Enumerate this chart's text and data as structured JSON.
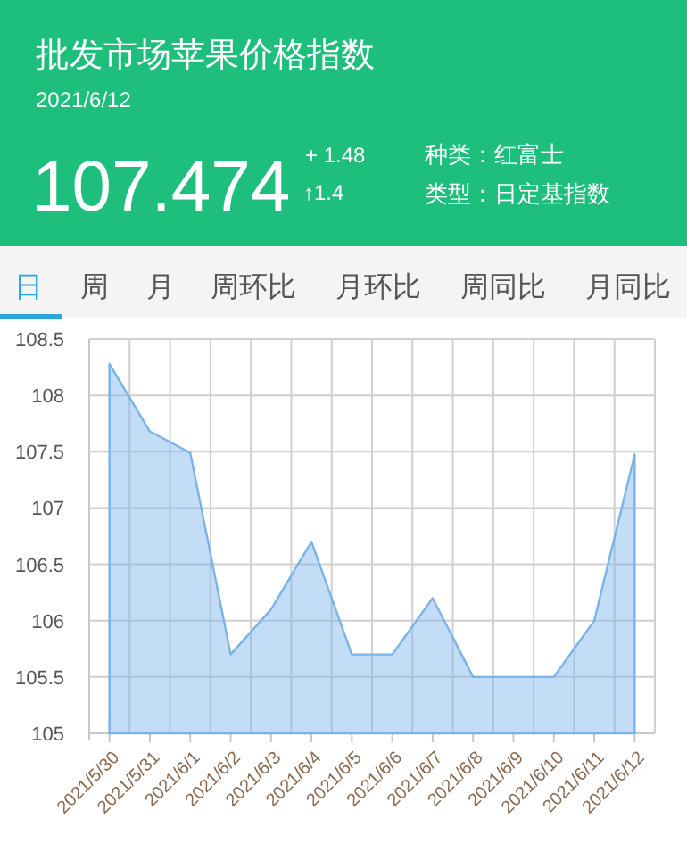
{
  "chart_data": {
    "type": "area",
    "title": "批发市场苹果价格指数",
    "subtitle": "2021/6/12",
    "annotations": [
      "107.474",
      "+ 1.48",
      "↑1.4",
      "种类：红富士",
      "类型：日定基指数",
      "日",
      "周",
      "月",
      "周环比",
      "月环比",
      "周同比",
      "月同比"
    ],
    "categories": [
      "2021/5/30",
      "2021/5/31",
      "2021/6/1",
      "2021/6/2",
      "2021/6/3",
      "2021/6/4",
      "2021/6/5",
      "2021/6/6",
      "2021/6/7",
      "2021/6/8",
      "2021/6/9",
      "2021/6/10",
      "2021/6/11",
      "2021/6/12"
    ],
    "values": [
      108.28,
      107.68,
      107.49,
      105.7,
      106.1,
      106.7,
      105.7,
      105.7,
      106.2,
      105.5,
      105.5,
      105.5,
      106.0,
      107.474
    ],
    "color": "#7ab3ea",
    "ylim": [
      105,
      108.5
    ],
    "yticks": [
      105,
      105.5,
      106,
      106.5,
      107,
      107.5,
      108,
      108.5
    ],
    "grid": true
  }
}
